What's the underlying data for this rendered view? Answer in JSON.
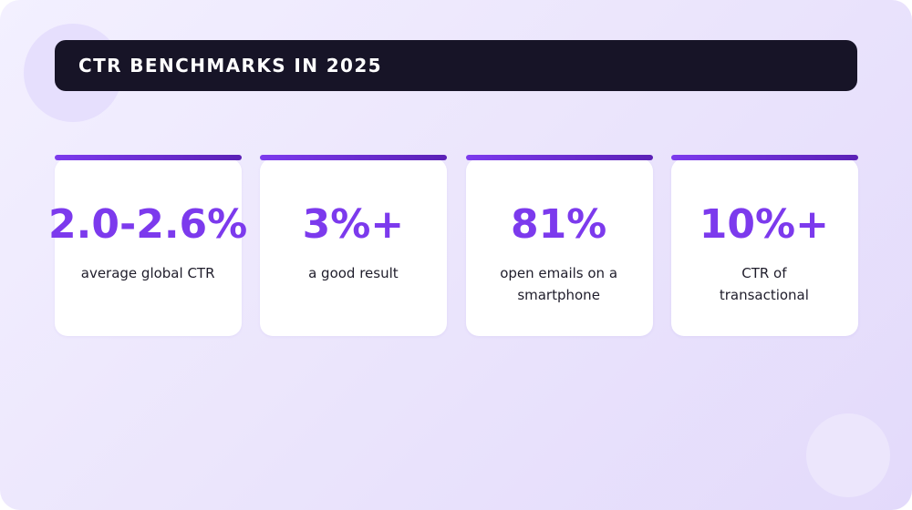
{
  "header": {
    "title": "CTR BENCHMARKS IN 2025"
  },
  "stats": [
    {
      "value": "2.0-2.6%",
      "label": "average global CTR"
    },
    {
      "value": "3%+",
      "label": "a good result"
    },
    {
      "value": "81%",
      "label": "open emails on a smartphone"
    },
    {
      "value": "10%+",
      "label": "CTR of transactional"
    }
  ],
  "colors": {
    "accent": "#7c3aed",
    "accent_dark": "#5b21b6",
    "title_bar_bg": "#171427",
    "card_bg": "#ffffff",
    "label_text": "#1f1d2b"
  }
}
